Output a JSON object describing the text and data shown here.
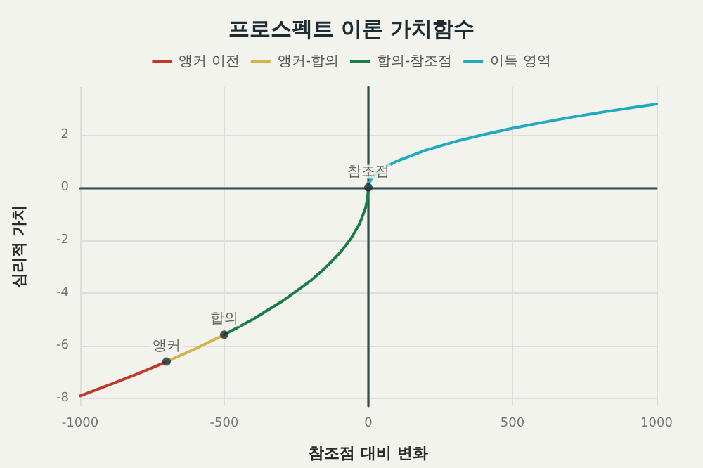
{
  "chart_data": {
    "type": "line",
    "title": "프로스펙트 이론 가치함수",
    "xlabel": "참조점 대비 변화",
    "ylabel": "심리적 가치",
    "xlim": [
      -1000,
      1000
    ],
    "xticks": [
      -1000,
      -500,
      0,
      500,
      1000
    ],
    "ylim": [
      -8.3,
      3.8
    ],
    "yticks": [
      -8,
      -6,
      -4,
      -2,
      0,
      2
    ],
    "grid": true,
    "legend": "top",
    "marker": "none",
    "line_style": "solid",
    "series": [
      {
        "name": "앵커 이전",
        "color": "#c0392b",
        "x": [
          -1000,
          -900,
          -800,
          -700
        ],
        "values": [
          -7.91,
          -7.5,
          -7.07,
          -6.61
        ]
      },
      {
        "name": "앵커-합의",
        "color": "#d4b44a",
        "x": [
          -700,
          -600,
          -500
        ],
        "values": [
          -6.61,
          -6.12,
          -5.59
        ]
      },
      {
        "name": "합의-참조점",
        "color": "#1e7b4a",
        "x": [
          -500,
          -400,
          -300,
          -200,
          -150,
          -100,
          -60,
          -30,
          -10,
          -3,
          0
        ],
        "values": [
          -5.59,
          -5.0,
          -4.33,
          -3.54,
          -3.06,
          -2.5,
          -1.94,
          -1.37,
          -0.79,
          -0.43,
          0
        ]
      },
      {
        "name": "이득 영역",
        "color": "#21a9c1",
        "x": [
          0,
          3,
          10,
          30,
          60,
          100,
          200,
          300,
          400,
          500,
          600,
          700,
          800,
          900,
          1000
        ],
        "values": [
          0,
          0.17,
          0.32,
          0.55,
          0.77,
          1.0,
          1.41,
          1.73,
          2.0,
          2.24,
          2.45,
          2.65,
          2.83,
          3.0,
          3.16
        ]
      },
      {
        "type": "scatter",
        "marker": "circle",
        "color": "#1a2e35",
        "x": [
          -700,
          -500,
          0
        ],
        "values": [
          -6.61,
          -5.59,
          0
        ],
        "value_labels": [
          "앵커",
          "합의",
          "참조점"
        ]
      }
    ]
  }
}
